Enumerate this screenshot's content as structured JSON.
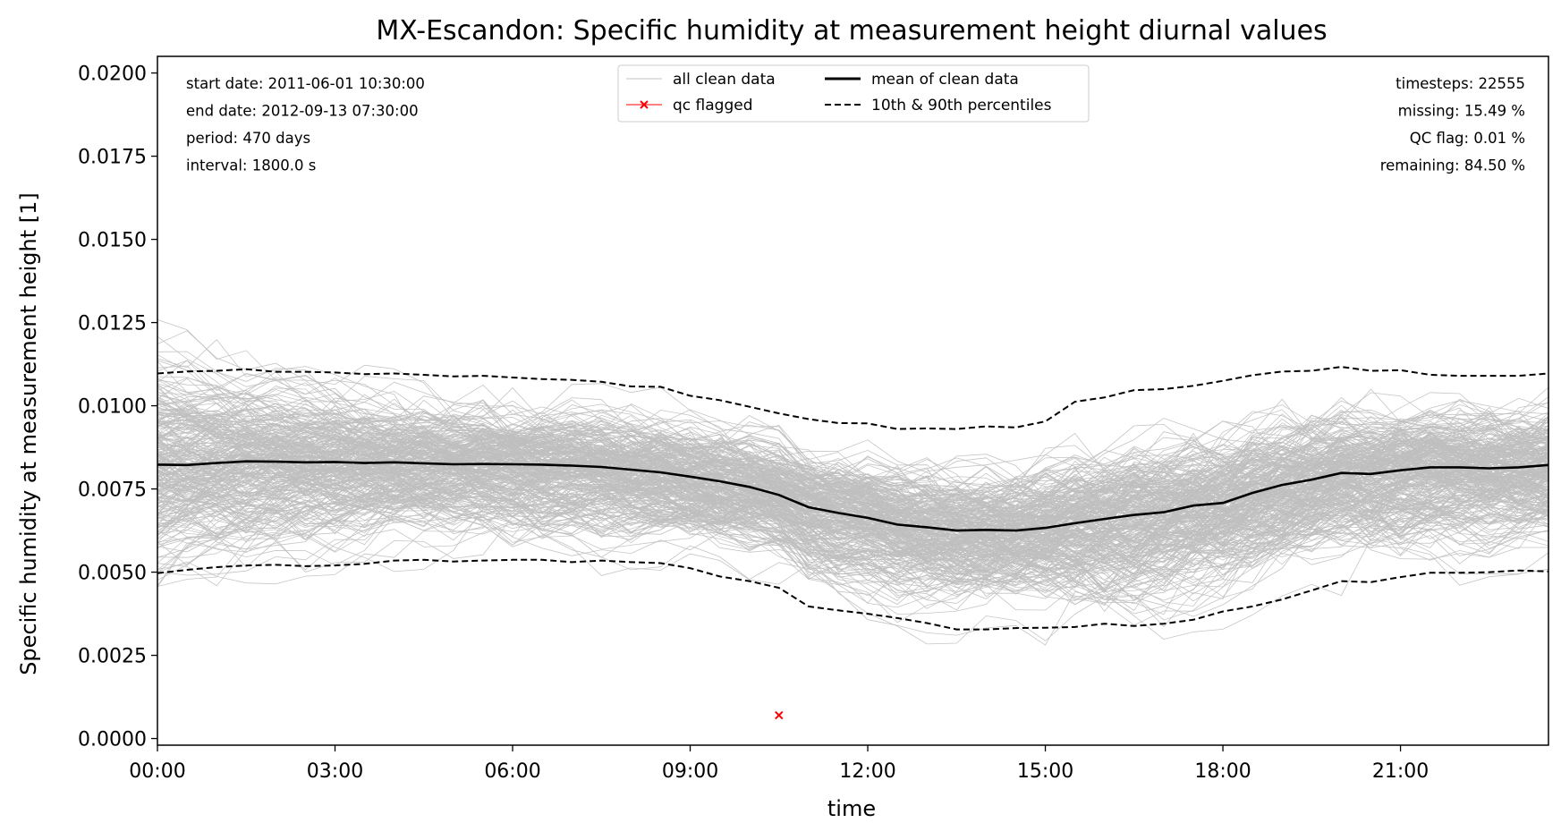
{
  "chart_data": {
    "type": "line",
    "title": "MX-Escandon: Specific humidity at measurement height diurnal values",
    "xlabel": "time",
    "ylabel": "Specific humidity at measurement height [1]",
    "xlim": [
      0,
      23.5
    ],
    "ylim": [
      -0.0002,
      0.0205
    ],
    "x_ticks": [
      {
        "value": 0,
        "label": "00:00"
      },
      {
        "value": 3,
        "label": "03:00"
      },
      {
        "value": 6,
        "label": "06:00"
      },
      {
        "value": 9,
        "label": "09:00"
      },
      {
        "value": 12,
        "label": "12:00"
      },
      {
        "value": 15,
        "label": "15:00"
      },
      {
        "value": 18,
        "label": "18:00"
      },
      {
        "value": 21,
        "label": "21:00"
      }
    ],
    "y_ticks": [
      {
        "value": 0.0,
        "label": "0.0000"
      },
      {
        "value": 0.0025,
        "label": "0.0025"
      },
      {
        "value": 0.005,
        "label": "0.0050"
      },
      {
        "value": 0.0075,
        "label": "0.0075"
      },
      {
        "value": 0.01,
        "label": "0.0100"
      },
      {
        "value": 0.0125,
        "label": "0.0125"
      },
      {
        "value": 0.015,
        "label": "0.0150"
      },
      {
        "value": 0.0175,
        "label": "0.0175"
      },
      {
        "value": 0.02,
        "label": "0.0200"
      }
    ],
    "grid": false,
    "legend": {
      "placement": "top-center",
      "entries": [
        {
          "label": "all clean data",
          "style": "thin-line",
          "color": "#bfbfbf"
        },
        {
          "label": "qc flagged",
          "style": "x-marker",
          "color": "#ff0000"
        },
        {
          "label": "mean of clean data",
          "style": "solid",
          "color": "#000000"
        },
        {
          "label": "10th & 90th percentiles",
          "style": "dashed",
          "color": "#000000"
        }
      ]
    },
    "stats_left": [
      "start date: 2011-06-01 10:30:00",
      "end date: 2012-09-13 07:30:00",
      "period: 470 days",
      "interval: 1800.0 s"
    ],
    "stats_right": [
      "timesteps: 22555",
      "missing: 15.49 %",
      "QC flag: 0.01 %",
      "remaining: 84.50 %"
    ],
    "colors": {
      "clean_data": "#bfbfbf",
      "mean": "#000000",
      "percentiles": "#000000",
      "qc_flagged": "#ff0000"
    },
    "x": [
      0,
      0.5,
      1,
      1.5,
      2,
      2.5,
      3,
      3.5,
      4,
      4.5,
      5,
      5.5,
      6,
      6.5,
      7,
      7.5,
      8,
      8.5,
      9,
      9.5,
      10,
      10.5,
      11,
      11.5,
      12,
      12.5,
      13,
      13.5,
      14,
      14.5,
      15,
      15.5,
      16,
      16.5,
      17,
      17.5,
      18,
      18.5,
      19,
      19.5,
      20,
      20.5,
      21,
      21.5,
      22,
      22.5,
      23,
      23.5
    ],
    "series": [
      {
        "name": "mean of clean data",
        "style": "solid",
        "values": [
          0.00823,
          0.00822,
          0.00828,
          0.00833,
          0.00832,
          0.0083,
          0.00831,
          0.00828,
          0.0083,
          0.00827,
          0.00824,
          0.00825,
          0.00824,
          0.00823,
          0.0082,
          0.00816,
          0.00808,
          0.008,
          0.00787,
          0.00773,
          0.00756,
          0.00732,
          0.00695,
          0.00678,
          0.00663,
          0.00643,
          0.00635,
          0.00625,
          0.00627,
          0.00625,
          0.00633,
          0.00647,
          0.0066,
          0.00672,
          0.0068,
          0.007,
          0.00708,
          0.00738,
          0.00762,
          0.00778,
          0.00798,
          0.00795,
          0.00806,
          0.00815,
          0.00815,
          0.00812,
          0.00815,
          0.00822
        ]
      },
      {
        "name": "10th & 90th percentiles",
        "style": "dashed",
        "values": [
          0.01097,
          0.01103,
          0.01105,
          0.0111,
          0.01102,
          0.01102,
          0.011,
          0.01095,
          0.01097,
          0.01093,
          0.01088,
          0.0109,
          0.01085,
          0.0108,
          0.01078,
          0.01072,
          0.01058,
          0.01057,
          0.0103,
          0.01017,
          0.00997,
          0.00977,
          0.0096,
          0.00948,
          0.00947,
          0.0093,
          0.00932,
          0.0093,
          0.00938,
          0.00935,
          0.00953,
          0.01012,
          0.01025,
          0.01047,
          0.0105,
          0.0106,
          0.01075,
          0.01092,
          0.01103,
          0.01105,
          0.01117,
          0.01105,
          0.01107,
          0.01093,
          0.0109,
          0.0109,
          0.0109,
          0.01097
        ]
      },
      {
        "name": "10th & 90th percentiles",
        "style": "dashed",
        "values": [
          0.00497,
          0.00507,
          0.00515,
          0.0052,
          0.00522,
          0.00518,
          0.0052,
          0.00525,
          0.00535,
          0.00537,
          0.00532,
          0.00535,
          0.00537,
          0.00537,
          0.0053,
          0.00535,
          0.0053,
          0.00527,
          0.00512,
          0.00487,
          0.00473,
          0.00453,
          0.00397,
          0.00385,
          0.00375,
          0.00362,
          0.00347,
          0.00328,
          0.00328,
          0.00332,
          0.00333,
          0.00335,
          0.00345,
          0.00338,
          0.00345,
          0.00357,
          0.00382,
          0.00397,
          0.00418,
          0.00445,
          0.00473,
          0.0047,
          0.00485,
          0.00498,
          0.00498,
          0.005,
          0.00505,
          0.00502
        ]
      }
    ],
    "qc_flagged_points": [
      {
        "x": 10.5,
        "y": 0.0007
      }
    ]
  }
}
